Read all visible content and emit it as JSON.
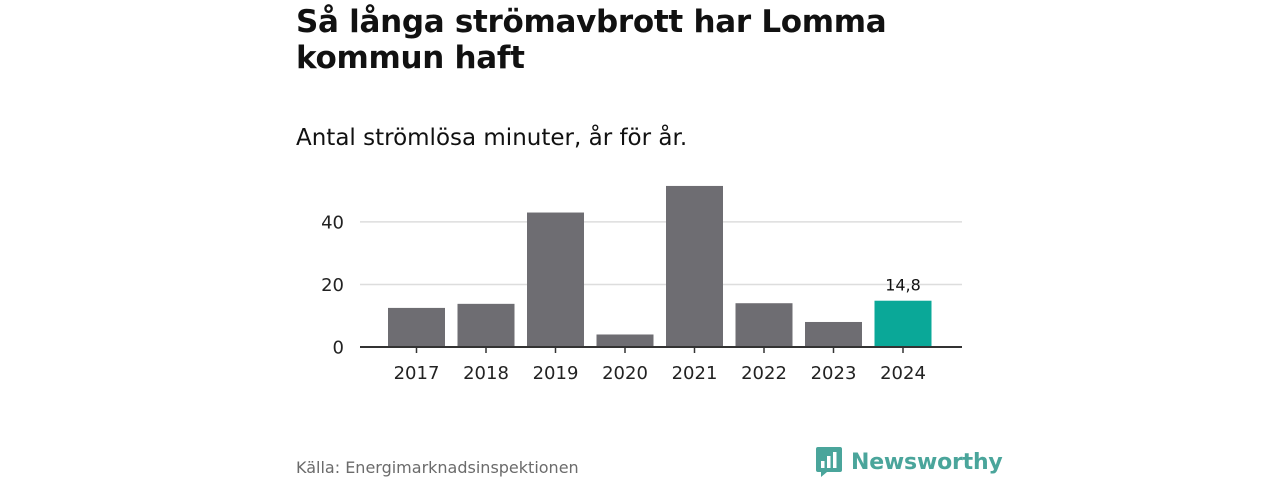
{
  "header": {
    "title": "Så långa strömavbrott har Lomma kommun haft",
    "subtitle": "Antal strömlösa minuter, år för år."
  },
  "chart_data": {
    "type": "bar",
    "title": "Så långa strömavbrott har Lomma kommun haft",
    "subtitle": "Antal strömlösa minuter, år för år.",
    "xlabel": "",
    "ylabel": "",
    "categories": [
      "2017",
      "2018",
      "2019",
      "2020",
      "2021",
      "2022",
      "2023",
      "2024"
    ],
    "values": [
      12.5,
      13.8,
      43.0,
      4.0,
      51.5,
      14.0,
      8.0,
      14.8
    ],
    "ylim": [
      0,
      55
    ],
    "yticks": [
      0,
      20,
      40
    ],
    "grid": true,
    "highlight_index": 7,
    "highlight_label": "14,8",
    "colors": {
      "bar": "#6e6d72",
      "highlight": "#0aa898",
      "grid": "#dddddd",
      "axis": "#333333"
    }
  },
  "footer": {
    "source": "Källa: Energimarknadsinspektionen",
    "brand": "Newsworthy",
    "brand_icon": "newsworthy-logo-icon",
    "brand_color": "#4aa59b"
  }
}
